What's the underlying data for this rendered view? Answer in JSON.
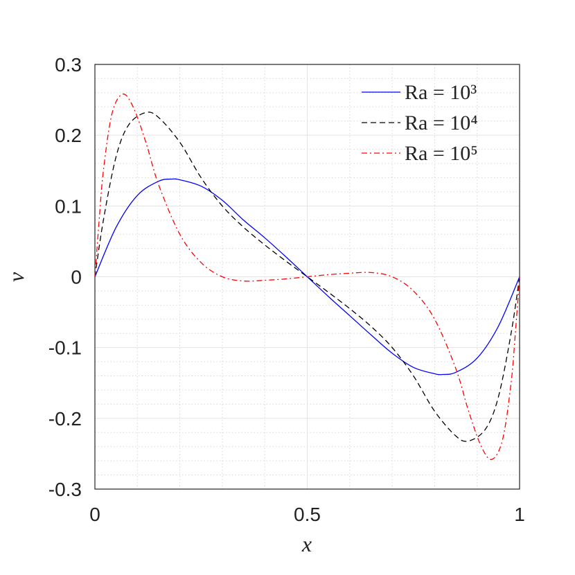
{
  "chart_data": {
    "type": "line",
    "xlabel": "x",
    "ylabel": "v",
    "xlim": [
      0,
      1
    ],
    "ylim": [
      -0.3,
      0.3
    ],
    "xticks": [
      0,
      0.5,
      1
    ],
    "yticks": [
      -0.3,
      -0.2,
      -0.1,
      0,
      0.1,
      0.2,
      0.3
    ],
    "xminorticks": [
      0.1,
      0.2,
      0.3,
      0.4,
      0.6,
      0.7,
      0.8,
      0.9
    ],
    "yminorticks": [
      -0.28,
      -0.26,
      -0.24,
      -0.22,
      -0.18,
      -0.16,
      -0.14,
      -0.12,
      -0.08,
      -0.06,
      -0.04,
      -0.02,
      0.02,
      0.04,
      0.06,
      0.08,
      0.12,
      0.14,
      0.16,
      0.18,
      0.22,
      0.24,
      0.26,
      0.28
    ],
    "grid": true,
    "minor_grid": true,
    "legend": "upper right",
    "series": [
      {
        "name": "Ra = 10³",
        "color": "#0000ff",
        "style": "solid",
        "x": [
          0,
          0.05,
          0.1,
          0.15,
          0.18,
          0.2,
          0.25,
          0.3,
          0.35,
          0.4,
          0.45,
          0.5,
          0.55,
          0.6,
          0.65,
          0.7,
          0.75,
          0.8,
          0.82,
          0.85,
          0.9,
          0.95,
          1
        ],
        "values": [
          0,
          0.07,
          0.115,
          0.135,
          0.138,
          0.137,
          0.128,
          0.108,
          0.08,
          0.055,
          0.028,
          0,
          -0.028,
          -0.055,
          -0.082,
          -0.108,
          -0.128,
          -0.137,
          -0.138,
          -0.135,
          -0.115,
          -0.07,
          0
        ]
      },
      {
        "name": "Ra = 10⁴",
        "color": "#000000",
        "style": "dashed",
        "x": [
          0,
          0.02,
          0.05,
          0.08,
          0.12,
          0.15,
          0.2,
          0.25,
          0.3,
          0.35,
          0.4,
          0.45,
          0.5,
          0.55,
          0.6,
          0.65,
          0.7,
          0.75,
          0.8,
          0.85,
          0.88,
          0.92,
          0.95,
          0.98,
          1
        ],
        "values": [
          0,
          0.08,
          0.17,
          0.215,
          0.232,
          0.225,
          0.19,
          0.14,
          0.1,
          0.07,
          0.045,
          0.022,
          0,
          -0.022,
          -0.045,
          -0.07,
          -0.1,
          -0.14,
          -0.19,
          -0.225,
          -0.232,
          -0.215,
          -0.17,
          -0.08,
          0
        ]
      },
      {
        "name": "Ra = 10⁵",
        "color": "#ff0000",
        "style": "dashdot",
        "x": [
          0,
          0.01,
          0.02,
          0.04,
          0.065,
          0.09,
          0.12,
          0.15,
          0.2,
          0.25,
          0.3,
          0.35,
          0.4,
          0.45,
          0.5,
          0.55,
          0.6,
          0.65,
          0.7,
          0.75,
          0.8,
          0.85,
          0.88,
          0.91,
          0.935,
          0.96,
          0.98,
          0.99,
          1
        ],
        "values": [
          0,
          0.08,
          0.15,
          0.23,
          0.258,
          0.24,
          0.19,
          0.13,
          0.06,
          0.02,
          0,
          -0.006,
          -0.005,
          -0.003,
          0,
          0.003,
          0.005,
          0.006,
          0,
          -0.02,
          -0.06,
          -0.13,
          -0.19,
          -0.24,
          -0.258,
          -0.23,
          -0.15,
          -0.08,
          0
        ]
      }
    ]
  }
}
